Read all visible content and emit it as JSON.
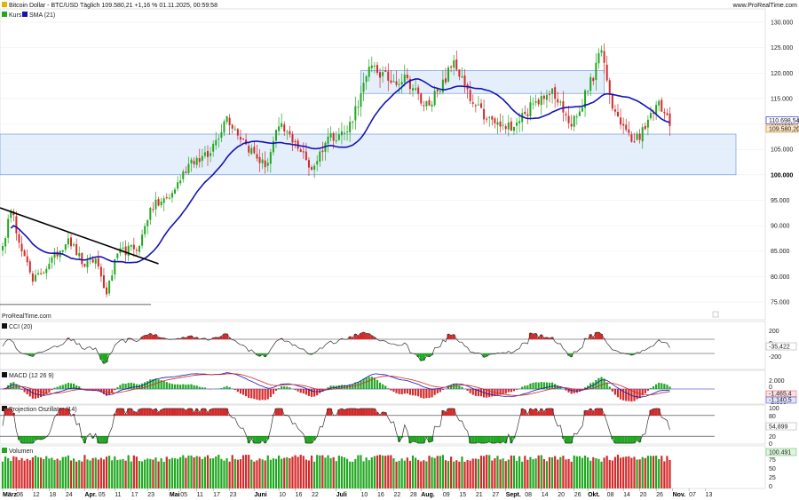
{
  "header": {
    "title": "Bitcoin Dollar - BTC/USD Täglich 109.580,21 +1,16 % 01.11.2025, 00:59:58",
    "site": "www.ProRealTime.com"
  },
  "legend": {
    "kurs": "Kurs",
    "sma": "SMA (21)",
    "watermark": "ProRealTime.com"
  },
  "panels": {
    "cci": {
      "label": "CCI (20)",
      "value": "-35,422",
      "ticks": [
        "200",
        "0",
        "-200"
      ]
    },
    "macd": {
      "label": "MACD (12 26 9)",
      "values": [
        "-1.465,4",
        "-1.140,5"
      ],
      "ticks": [
        "2.000",
        "0",
        "-2.000"
      ]
    },
    "proj": {
      "label": "Projection Oszillator (14)",
      "value": "54,899",
      "ticks": [
        "100",
        "80",
        "20",
        "0"
      ]
    },
    "vol": {
      "label": "Volumen",
      "value": "100.491",
      "ticks": [
        "75",
        "50",
        "25",
        "0"
      ]
    }
  },
  "colors": {
    "up": "#21a821",
    "down": "#d42a2a",
    "sma": "#1414b4",
    "zone": "#dce9fb",
    "zone_border": "#5a8ad8"
  },
  "chart_data": {
    "type": "candlestick",
    "title": "Bitcoin Dollar - BTC/USD Täglich",
    "last_price": 109580.2,
    "sma_last": 110698.54,
    "y_ticks": [
      75000,
      80000,
      85000,
      90000,
      95000,
      100000,
      105000,
      110000,
      115000,
      120000,
      125000,
      130000
    ],
    "y_tick_labels": [
      "75.000",
      "80.000",
      "85.000",
      "90.000",
      "95.000",
      "100.000",
      "105.000",
      "110.000",
      "115.000",
      "120.000",
      "125.000",
      "130.000"
    ],
    "ylim": [
      71500,
      132500
    ],
    "x_tick_labels": [
      "März",
      "06",
      "12",
      "18",
      "24",
      "Apr.",
      "05",
      "11",
      "17",
      "23",
      "Mai",
      "05",
      "11",
      "17",
      "23",
      "Juni",
      "10",
      "16",
      "22",
      "Juli",
      "10",
      "16",
      "22",
      "28",
      "Aug.",
      "09",
      "15",
      "21",
      "27",
      "Sept.",
      "08",
      "14",
      "20",
      "26",
      "Okt.",
      "08",
      "14",
      "20",
      "26",
      "Nov.",
      "07",
      "13"
    ],
    "support_zone": {
      "from": 100000,
      "to": 108000
    },
    "resistance_zone": {
      "from": 116000,
      "to": 120500
    },
    "low_marker": 74500,
    "downtrend_line": {
      "from": {
        "date": "2025-03-01",
        "value": 93500
      },
      "to": {
        "date": "2025-04-27",
        "value": 82500
      }
    },
    "anchors": [
      {
        "date": "2025-03-01",
        "close": 86000
      },
      {
        "date": "2025-03-04",
        "close": 93000
      },
      {
        "date": "2025-03-09",
        "close": 84000
      },
      {
        "date": "2025-03-12",
        "close": 79000
      },
      {
        "date": "2025-03-18",
        "close": 82500
      },
      {
        "date": "2025-03-25",
        "close": 87500
      },
      {
        "date": "2025-03-31",
        "close": 82000
      },
      {
        "date": "2025-04-04",
        "close": 83500
      },
      {
        "date": "2025-04-08",
        "close": 76500
      },
      {
        "date": "2025-04-12",
        "close": 84500
      },
      {
        "date": "2025-04-20",
        "close": 86000
      },
      {
        "date": "2025-04-24",
        "close": 93500
      },
      {
        "date": "2025-05-01",
        "close": 95500
      },
      {
        "date": "2025-05-09",
        "close": 103000
      },
      {
        "date": "2025-05-15",
        "close": 103500
      },
      {
        "date": "2025-05-22",
        "close": 111500
      },
      {
        "date": "2025-05-29",
        "close": 106000
      },
      {
        "date": "2025-06-05",
        "close": 101500
      },
      {
        "date": "2025-06-10",
        "close": 109500
      },
      {
        "date": "2025-06-16",
        "close": 106500
      },
      {
        "date": "2025-06-22",
        "close": 101000
      },
      {
        "date": "2025-06-28",
        "close": 107500
      },
      {
        "date": "2025-07-05",
        "close": 108500
      },
      {
        "date": "2025-07-10",
        "close": 116000
      },
      {
        "date": "2025-07-14",
        "close": 121500
      },
      {
        "date": "2025-07-20",
        "close": 118500
      },
      {
        "date": "2025-07-27",
        "close": 119000
      },
      {
        "date": "2025-08-02",
        "close": 113500
      },
      {
        "date": "2025-08-08",
        "close": 116500
      },
      {
        "date": "2025-08-13",
        "close": 122500
      },
      {
        "date": "2025-08-19",
        "close": 114500
      },
      {
        "date": "2025-08-25",
        "close": 111000
      },
      {
        "date": "2025-09-01",
        "close": 109000
      },
      {
        "date": "2025-09-08",
        "close": 112000
      },
      {
        "date": "2025-09-14",
        "close": 115500
      },
      {
        "date": "2025-09-18",
        "close": 117000
      },
      {
        "date": "2025-09-25",
        "close": 109500
      },
      {
        "date": "2025-10-01",
        "close": 116500
      },
      {
        "date": "2025-10-06",
        "close": 124500
      },
      {
        "date": "2025-10-10",
        "close": 113000
      },
      {
        "date": "2025-10-12",
        "close": 111500
      },
      {
        "date": "2025-10-17",
        "close": 106500
      },
      {
        "date": "2025-10-22",
        "close": 109000
      },
      {
        "date": "2025-10-27",
        "close": 114500
      },
      {
        "date": "2025-10-31",
        "close": 109580
      }
    ]
  }
}
